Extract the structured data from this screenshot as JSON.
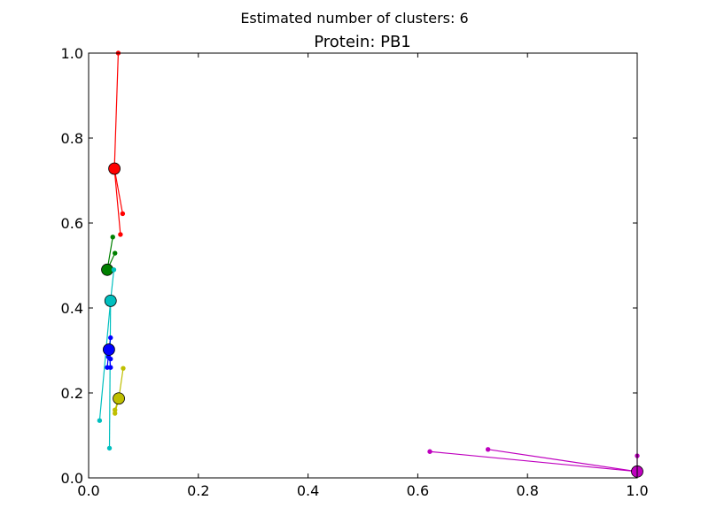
{
  "chart_data": {
    "type": "scatter",
    "suptitle": "Estimated number of clusters: 6",
    "title": "Protein: PB1",
    "xlim": [
      0,
      1
    ],
    "ylim": [
      0,
      1
    ],
    "x_ticks": [
      0.0,
      0.2,
      0.4,
      0.6,
      0.8,
      1.0
    ],
    "y_ticks": [
      0.0,
      0.2,
      0.4,
      0.6,
      0.8,
      1.0
    ],
    "x_tick_labels": [
      "0.0",
      "0.2",
      "0.4",
      "0.6",
      "0.8",
      "1.0"
    ],
    "y_tick_labels": [
      "0.0",
      "0.2",
      "0.4",
      "0.6",
      "0.8",
      "1.0"
    ],
    "grid": false,
    "clusters": [
      {
        "color": "#ff0000",
        "center": [
          0.047,
          0.728
        ],
        "points": [
          [
            0.054,
            1.0
          ],
          [
            0.062,
            0.622
          ],
          [
            0.058,
            0.573
          ]
        ]
      },
      {
        "color": "#008000",
        "center": [
          0.034,
          0.49
        ],
        "points": [
          [
            0.044,
            0.567
          ],
          [
            0.048,
            0.529
          ]
        ]
      },
      {
        "color": "#00bfbf",
        "center": [
          0.04,
          0.417
        ],
        "points": [
          [
            0.046,
            0.49
          ],
          [
            0.02,
            0.135
          ],
          [
            0.038,
            0.07
          ]
        ]
      },
      {
        "color": "#0000ff",
        "center": [
          0.037,
          0.302
        ],
        "points": [
          [
            0.04,
            0.33
          ],
          [
            0.036,
            0.285
          ],
          [
            0.04,
            0.28
          ],
          [
            0.034,
            0.26
          ],
          [
            0.04,
            0.26
          ]
        ]
      },
      {
        "color": "#bfbf00",
        "center": [
          0.055,
          0.187
        ],
        "points": [
          [
            0.063,
            0.258
          ],
          [
            0.048,
            0.16
          ],
          [
            0.048,
            0.152
          ]
        ]
      },
      {
        "color": "#bf00bf",
        "center": [
          1.0,
          0.015
        ],
        "points": [
          [
            0.622,
            0.062
          ],
          [
            0.728,
            0.067
          ],
          [
            1.0,
            0.052
          ]
        ]
      }
    ]
  }
}
